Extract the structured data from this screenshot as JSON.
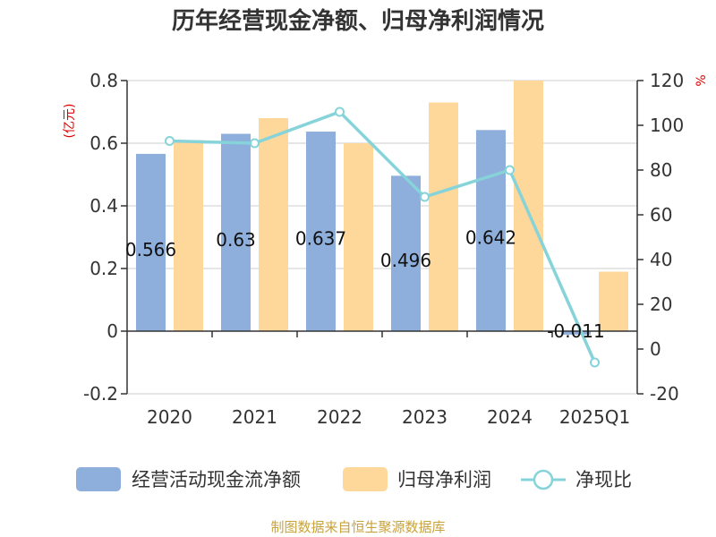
{
  "chart_data": {
    "type": "bar",
    "title": "历年经营现金净额、归母净利润情况",
    "categories": [
      "2020",
      "2021",
      "2022",
      "2023",
      "2024",
      "2025Q1"
    ],
    "left_axis": {
      "unit": "(亿元)",
      "min": -0.2,
      "max": 0.8,
      "ticks": [
        -0.2,
        0,
        0.2,
        0.4,
        0.6,
        0.8
      ]
    },
    "right_axis": {
      "unit": "%",
      "min": -20,
      "max": 120,
      "ticks": [
        -20,
        0,
        20,
        40,
        60,
        80,
        100,
        120
      ]
    },
    "series": [
      {
        "name": "经营活动现金流净额",
        "type": "bar",
        "axis": "left",
        "color": "#8eaedb",
        "values": [
          0.566,
          0.63,
          0.637,
          0.496,
          0.642,
          -0.011
        ],
        "labels": [
          "0.566",
          "0.63",
          "0.637",
          "0.496",
          "0.642",
          "-0.011"
        ]
      },
      {
        "name": "归母净利润",
        "type": "bar",
        "axis": "left",
        "color": "#fdd89a",
        "values": [
          0.61,
          0.68,
          0.6,
          0.73,
          0.8,
          0.19
        ]
      },
      {
        "name": "净现比",
        "type": "line",
        "axis": "right",
        "color": "#86d3d9",
        "values": [
          93,
          92,
          106,
          68,
          80,
          -6
        ]
      }
    ],
    "grid": true,
    "legend_position": "bottom"
  },
  "source": "制图数据来自恒生聚源数据库"
}
